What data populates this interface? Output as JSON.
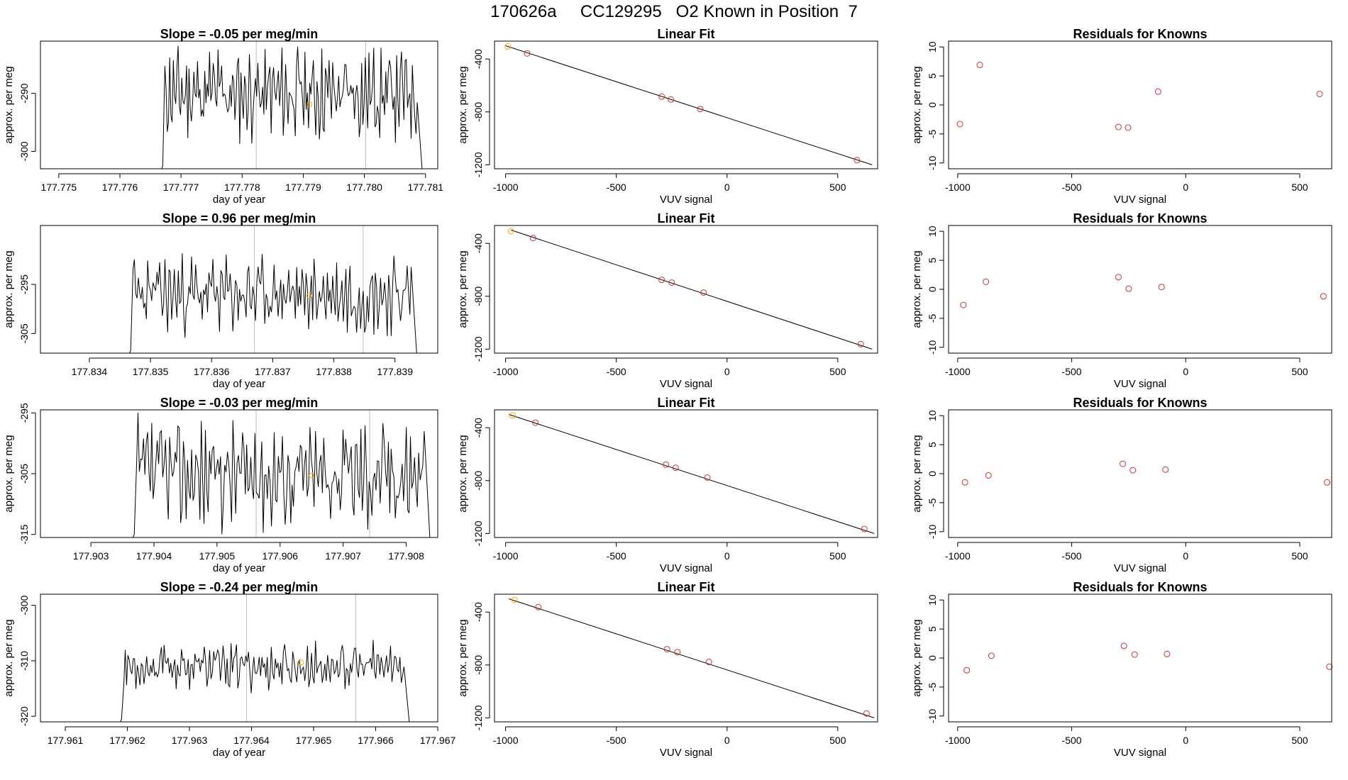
{
  "figure_title": "170626a     CC129295   O2 Known in Position  7",
  "colors": {
    "trace": "#000000",
    "fit_line": "#000000",
    "known_point": "#CD3333",
    "highlight_point": "#FFA500",
    "vline": "#BEBEBE"
  },
  "chart_data": [
    {
      "type": "line",
      "panel": "timeseries",
      "title": "Slope =  -0.05  per meg/min",
      "xlabel": "day of year",
      "ylabel": "approx. per meg",
      "xlim": [
        177.7747,
        177.7812
      ],
      "ylim": [
        -303,
        -281
      ],
      "xticks": [
        "177.775",
        "177.776",
        "177.777",
        "177.778",
        "177.779",
        "177.780",
        "177.781"
      ],
      "xtick_values": [
        177.775,
        177.776,
        177.777,
        177.778,
        177.779,
        177.78,
        177.781
      ],
      "yticks": [
        "-290",
        "-300"
      ],
      "ytick_values": [
        -290,
        -300
      ],
      "vlines": [
        177.77823,
        177.78002
      ],
      "highlight_point": {
        "x": 177.7791,
        "y": -291.9
      },
      "x_range": [
        177.77665,
        177.78095
      ],
      "series": {
        "name": "signal",
        "seed": 11,
        "center": -290,
        "amp": 6.5,
        "n": 210
      }
    },
    {
      "type": "scatter",
      "panel": "linear_fit",
      "title": "Linear Fit",
      "xlabel": "VUV signal",
      "ylabel": "approx. per meg",
      "xlim": [
        -1050,
        680
      ],
      "ylim": [
        -1230,
        -265
      ],
      "xticks": [
        "-1000",
        "-500",
        "0",
        "500"
      ],
      "xtick_values": [
        -1000,
        -500,
        0,
        500
      ],
      "yticks": [
        "-400",
        "-800",
        "-1200"
      ],
      "ytick_values": [
        -400,
        -800,
        -1200
      ],
      "fit_line": {
        "x": [
          -1000,
          655
        ],
        "y": [
          -300,
          -1200
        ]
      },
      "points": {
        "x": [
          -990,
          -903,
          -295,
          -253,
          -121,
          587
        ],
        "y": [
          -305,
          -358,
          -684,
          -706,
          -778,
          -1165
        ]
      },
      "highlight_index": 0
    },
    {
      "type": "scatter",
      "panel": "residuals",
      "title": "Residuals for Knowns",
      "xlabel": "VUV signal",
      "ylabel": "approx. per meg",
      "xlim": [
        -1040,
        640
      ],
      "ylim": [
        -11,
        11
      ],
      "xticks": [
        "-1000",
        "-500",
        "0",
        "500"
      ],
      "xtick_values": [
        -1000,
        -500,
        0,
        500
      ],
      "yticks": [
        "10",
        "5",
        "0",
        "-5",
        "-10"
      ],
      "ytick_values": [
        10,
        5,
        0,
        -5,
        -10
      ],
      "points": {
        "x": [
          -990,
          -903,
          -295,
          -253,
          -121,
          587
        ],
        "y": [
          -3.3,
          6.9,
          -3.8,
          -3.9,
          2.3,
          1.9
        ]
      }
    },
    {
      "type": "line",
      "panel": "timeseries",
      "title": "Slope =  0.96  per meg/min",
      "xlabel": "day of year",
      "ylabel": "approx. per meg",
      "xlim": [
        177.8332,
        177.8397
      ],
      "ylim": [
        -309,
        -283
      ],
      "xticks": [
        "177.834",
        "177.835",
        "177.836",
        "177.837",
        "177.838",
        "177.839"
      ],
      "xtick_values": [
        177.834,
        177.835,
        177.836,
        177.837,
        177.838,
        177.839
      ],
      "yticks": [
        "-295",
        "-305"
      ],
      "ytick_values": [
        -295,
        -305
      ],
      "vlines": [
        177.8367,
        177.83848
      ],
      "highlight_point": {
        "x": 177.8376,
        "y": -297.3
      },
      "x_range": [
        177.83462,
        177.83936
      ],
      "series": {
        "name": "signal",
        "seed": 23,
        "center": -297,
        "amp": 6.5,
        "n": 210
      }
    },
    {
      "type": "scatter",
      "panel": "linear_fit",
      "title": "Linear Fit",
      "xlabel": "VUV signal",
      "ylabel": "approx. per meg",
      "xlim": [
        -1050,
        680
      ],
      "ylim": [
        -1230,
        -265
      ],
      "xticks": [
        "-1000",
        "-500",
        "0",
        "500"
      ],
      "xtick_values": [
        -1000,
        -500,
        0,
        500
      ],
      "yticks": [
        "-400",
        "-800",
        "-1200"
      ],
      "ytick_values": [
        -400,
        -800,
        -1200
      ],
      "fit_line": {
        "x": [
          -975,
          655
        ],
        "y": [
          -300,
          -1200
        ]
      },
      "points": {
        "x": [
          -975,
          -876,
          -295,
          -250,
          -106,
          604
        ],
        "y": [
          -308,
          -360,
          -676,
          -697,
          -772,
          -1162
        ]
      },
      "highlight_index": 0
    },
    {
      "type": "scatter",
      "panel": "residuals",
      "title": "Residuals for Knowns",
      "xlabel": "VUV signal",
      "ylabel": "approx. per meg",
      "xlim": [
        -1040,
        640
      ],
      "ylim": [
        -11,
        11
      ],
      "xticks": [
        "-1000",
        "-500",
        "0",
        "500"
      ],
      "xtick_values": [
        -1000,
        -500,
        0,
        500
      ],
      "yticks": [
        "10",
        "5",
        "0",
        "-5",
        "-10"
      ],
      "ytick_values": [
        10,
        5,
        0,
        -5,
        -10
      ],
      "points": {
        "x": [
          -975,
          -876,
          -295,
          -250,
          -106,
          604
        ],
        "y": [
          -2.7,
          1.3,
          2.1,
          0.1,
          0.4,
          -1.2
        ]
      }
    },
    {
      "type": "line",
      "panel": "timeseries",
      "title": "Slope =  -0.03  per meg/min",
      "xlabel": "day of year",
      "ylabel": "approx. per meg",
      "xlim": [
        177.9022,
        177.9085
      ],
      "ylim": [
        -315.5,
        -294.5
      ],
      "xticks": [
        "177.903",
        "177.904",
        "177.905",
        "177.906",
        "177.907",
        "177.908"
      ],
      "xtick_values": [
        177.903,
        177.904,
        177.905,
        177.906,
        177.907,
        177.908
      ],
      "yticks": [
        "-295",
        "-305",
        "-315"
      ],
      "ytick_values": [
        -295,
        -305,
        -315
      ],
      "vlines": [
        177.90562,
        177.90742
      ],
      "highlight_point": {
        "x": 177.9065,
        "y": -305.3
      },
      "x_range": [
        177.90363,
        177.90838
      ],
      "series": {
        "name": "signal",
        "seed": 37,
        "center": -305,
        "amp": 7.5,
        "n": 210
      }
    },
    {
      "type": "scatter",
      "panel": "linear_fit",
      "title": "Linear Fit",
      "xlabel": "VUV signal",
      "ylabel": "approx. per meg",
      "xlim": [
        -1050,
        680
      ],
      "ylim": [
        -1230,
        -265
      ],
      "xticks": [
        "-1000",
        "-500",
        "0",
        "500"
      ],
      "xtick_values": [
        -1000,
        -500,
        0,
        500
      ],
      "yticks": [
        "-400",
        "-800",
        "-1200"
      ],
      "ytick_values": [
        -400,
        -800,
        -1200
      ],
      "fit_line": {
        "x": [
          -985,
          665
        ],
        "y": [
          -300,
          -1200
        ]
      },
      "points": {
        "x": [
          -968,
          -865,
          -276,
          -232,
          -89,
          620
        ],
        "y": [
          -307,
          -362,
          -679,
          -703,
          -777,
          -1166
        ]
      },
      "highlight_index": 0
    },
    {
      "type": "scatter",
      "panel": "residuals",
      "title": "Residuals for Knowns",
      "xlabel": "VUV signal",
      "ylabel": "approx. per meg",
      "xlim": [
        -1040,
        640
      ],
      "ylim": [
        -11,
        11
      ],
      "xticks": [
        "-1000",
        "-500",
        "0",
        "500"
      ],
      "xtick_values": [
        -1000,
        -500,
        0,
        500
      ],
      "yticks": [
        "10",
        "5",
        "0",
        "-5",
        "-10"
      ],
      "ytick_values": [
        10,
        5,
        0,
        -5,
        -10
      ],
      "points": {
        "x": [
          -968,
          -865,
          -276,
          -232,
          -89,
          620
        ],
        "y": [
          -1.5,
          -0.3,
          1.7,
          0.6,
          0.7,
          -1.5
        ]
      }
    },
    {
      "type": "line",
      "panel": "timeseries",
      "title": "Slope =  -0.24  per meg/min",
      "xlabel": "day of year",
      "ylabel": "approx. per meg",
      "xlim": [
        177.9606,
        177.967
      ],
      "ylim": [
        -321,
        -298
      ],
      "xticks": [
        "177.961",
        "177.962",
        "177.963",
        "177.964",
        "177.965",
        "177.966",
        "177.967"
      ],
      "xtick_values": [
        177.961,
        177.962,
        177.963,
        177.964,
        177.965,
        177.966,
        177.967
      ],
      "yticks": [
        "-300",
        "-310",
        "-320"
      ],
      "ytick_values": [
        -300,
        -310,
        -320
      ],
      "vlines": [
        177.96392,
        177.96568
      ],
      "highlight_point": {
        "x": 177.9648,
        "y": -310.3
      },
      "x_range": [
        177.96185,
        177.96655
      ],
      "series": {
        "name": "signal",
        "seed": 53,
        "center": -311,
        "amp": 3.5,
        "n": 210
      }
    },
    {
      "type": "scatter",
      "panel": "linear_fit",
      "title": "Linear Fit",
      "xlabel": "VUV signal",
      "ylabel": "approx. per meg",
      "xlim": [
        -1050,
        680
      ],
      "ylim": [
        -1230,
        -265
      ],
      "xticks": [
        "-1000",
        "-500",
        "0",
        "500"
      ],
      "xtick_values": [
        -1000,
        -500,
        0,
        500
      ],
      "yticks": [
        "-400",
        "-800",
        "-1200"
      ],
      "ytick_values": [
        -400,
        -800,
        -1200
      ],
      "fit_line": {
        "x": [
          -985,
          665
        ],
        "y": [
          -300,
          -1200
        ]
      },
      "points": {
        "x": [
          -960,
          -852,
          -271,
          -224,
          -82,
          630
        ],
        "y": [
          -308,
          -363,
          -681,
          -703,
          -777,
          -1167
        ]
      },
      "highlight_index": 0
    },
    {
      "type": "scatter",
      "panel": "residuals",
      "title": "Residuals for Knowns",
      "xlabel": "VUV signal",
      "ylabel": "approx. per meg",
      "xlim": [
        -1040,
        640
      ],
      "ylim": [
        -11,
        11
      ],
      "xticks": [
        "-1000",
        "-500",
        "0",
        "500"
      ],
      "xtick_values": [
        -1000,
        -500,
        0,
        500
      ],
      "yticks": [
        "10",
        "5",
        "0",
        "-5",
        "-10"
      ],
      "ytick_values": [
        10,
        5,
        0,
        -5,
        -10
      ],
      "points": {
        "x": [
          -960,
          -852,
          -271,
          -224,
          -82,
          630
        ],
        "y": [
          -2.1,
          0.4,
          2.1,
          0.6,
          0.7,
          -1.5
        ]
      }
    }
  ]
}
